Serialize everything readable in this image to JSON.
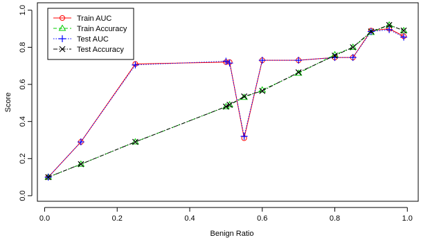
{
  "chart_data": {
    "type": "line",
    "title": "",
    "xlabel": "Benign Ratio",
    "ylabel": "Score",
    "xlim": [
      -0.02,
      1.03
    ],
    "ylim": [
      -0.03,
      1.04
    ],
    "x_ticks": [
      0.0,
      0.2,
      0.4,
      0.6,
      0.8,
      1.0
    ],
    "x_tick_labels": [
      "0.0",
      "0.2",
      "0.4",
      "0.6",
      "0.8",
      "1.0"
    ],
    "y_ticks": [
      0.0,
      0.2,
      0.4,
      0.6,
      0.8,
      1.0
    ],
    "y_tick_labels": [
      "0.0",
      "0.2",
      "0.4",
      "0.6",
      "0.8",
      "1.0"
    ],
    "grid": false,
    "legend_position": "top-left",
    "x": [
      0.01,
      0.1,
      0.25,
      0.5,
      0.51,
      0.55,
      0.6,
      0.7,
      0.8,
      0.85,
      0.9,
      0.95,
      0.99
    ],
    "series": [
      {
        "name": "Train AUC",
        "color": "#ff0000",
        "dash": "solid",
        "marker": "circle",
        "values": [
          0.1,
          0.29,
          0.71,
          0.72,
          0.72,
          0.31,
          0.73,
          0.73,
          0.745,
          0.745,
          0.89,
          0.9,
          0.86
        ]
      },
      {
        "name": "Train Accuracy",
        "color": "#00cc00",
        "dash": "dashed",
        "marker": "triangle",
        "values": [
          0.1,
          0.17,
          0.29,
          0.48,
          0.49,
          0.53,
          0.57,
          0.66,
          0.76,
          0.8,
          0.88,
          0.92,
          0.89
        ]
      },
      {
        "name": "Test AUC",
        "color": "#0000ff",
        "dash": "dotted",
        "marker": "plus",
        "values": [
          0.1,
          0.29,
          0.705,
          0.725,
          0.715,
          0.32,
          0.73,
          0.73,
          0.745,
          0.745,
          0.885,
          0.895,
          0.855
        ]
      },
      {
        "name": "Test Accuracy",
        "color": "#000000",
        "dash": "dashdot",
        "marker": "cross",
        "values": [
          0.1,
          0.17,
          0.29,
          0.48,
          0.49,
          0.535,
          0.565,
          0.665,
          0.755,
          0.8,
          0.885,
          0.92,
          0.89
        ]
      }
    ]
  }
}
